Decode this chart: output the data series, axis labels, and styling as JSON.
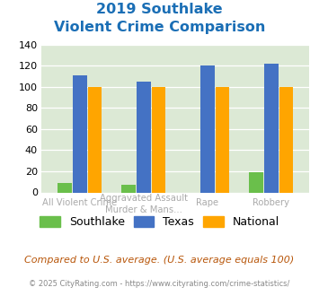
{
  "title_line1": "2019 Southlake",
  "title_line2": "Violent Crime Comparison",
  "cat_labels_line1": [
    "",
    "Aggravated Assault",
    "",
    ""
  ],
  "cat_labels_line2": [
    "All Violent Crime",
    "Murder & Mans...",
    "Rape",
    "Robbery"
  ],
  "southlake": [
    9,
    7,
    0,
    19
  ],
  "texas": [
    111,
    105,
    120,
    122
  ],
  "national": [
    100,
    100,
    100,
    100
  ],
  "southlake_color": "#6abf4b",
  "texas_color": "#4472c4",
  "national_color": "#ffa500",
  "ylim": [
    0,
    140
  ],
  "yticks": [
    0,
    20,
    40,
    60,
    80,
    100,
    120,
    140
  ],
  "bg_color": "#dce9d5",
  "footer_text": "Compared to U.S. average. (U.S. average equals 100)",
  "copyright_text": "© 2025 CityRating.com - https://www.cityrating.com/crime-statistics/",
  "title_color": "#1a6eb5",
  "footer_color": "#b8560a",
  "copyright_color": "#888888",
  "label_color": "#aaaaaa"
}
